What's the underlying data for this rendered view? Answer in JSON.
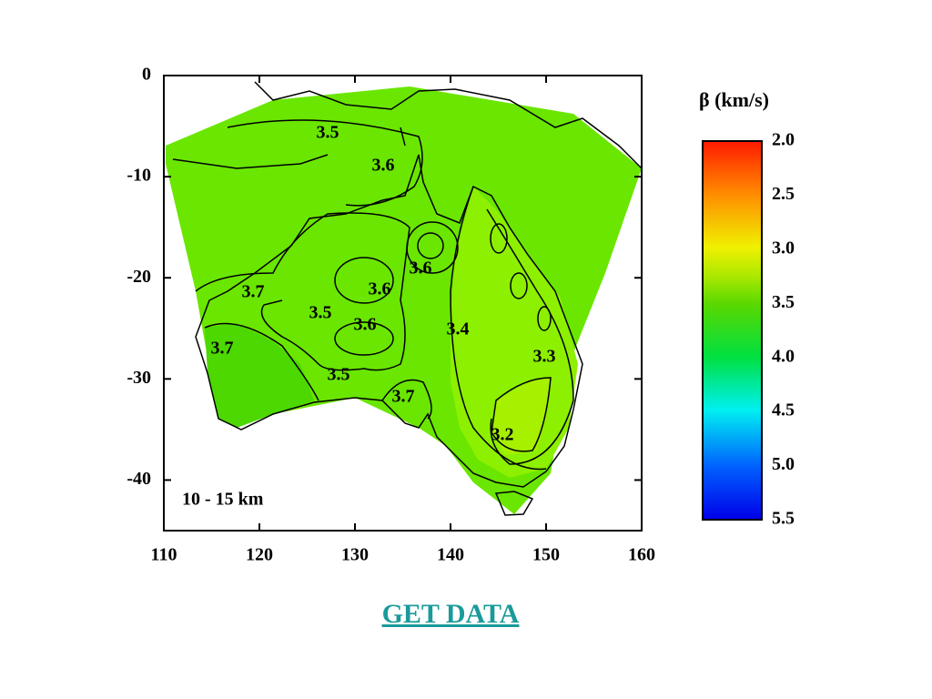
{
  "map": {
    "xlim": [
      110,
      160
    ],
    "ylim": [
      -45,
      0
    ],
    "xticks": [
      110,
      120,
      130,
      140,
      150,
      160
    ],
    "yticks": [
      0,
      -10,
      -20,
      -30,
      -40
    ],
    "depth_label": "10 - 15 km",
    "contour_labels": [
      "3.5",
      "3.6",
      "3.6",
      "3.7",
      "3.6",
      "3.5",
      "3.6",
      "3.4",
      "3.7",
      "3.3",
      "3.5",
      "3.7",
      "3.2"
    ],
    "colorbar": {
      "title": "β (km/s)",
      "lim": [
        2.0,
        5.5
      ],
      "ticks": [
        {
          "value": 2.0,
          "label": "2.0"
        },
        {
          "value": 2.5,
          "label": "2.5"
        },
        {
          "value": 3.0,
          "label": "3.0"
        },
        {
          "value": 3.5,
          "label": "3.5"
        },
        {
          "value": 4.0,
          "label": "4.0"
        },
        {
          "value": 4.5,
          "label": "4.5"
        },
        {
          "value": 5.0,
          "label": "5.0"
        },
        {
          "value": 5.5,
          "label": "5.5"
        }
      ]
    }
  },
  "link": "GET DATA"
}
